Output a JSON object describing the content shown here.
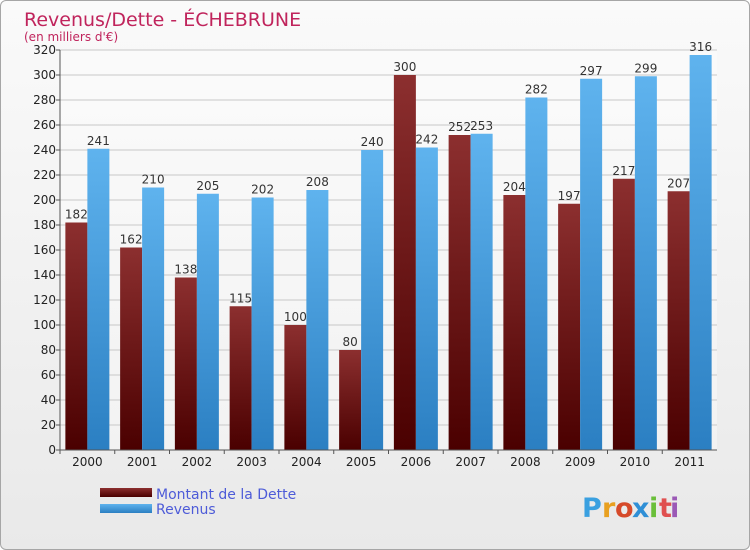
{
  "chart_data": {
    "type": "bar",
    "title": "Revenus/Dette - ÉCHEBRUNE",
    "subtitle": "(en milliers d'€)",
    "categories": [
      "2000",
      "2001",
      "2002",
      "2003",
      "2004",
      "2005",
      "2006",
      "2007",
      "2008",
      "2009",
      "2010",
      "2011"
    ],
    "series": [
      {
        "name": "Montant de la Dette",
        "color": "#7a1a1a",
        "values": [
          182,
          162,
          138,
          115,
          100,
          80,
          300,
          252,
          204,
          197,
          217,
          207
        ]
      },
      {
        "name": "Revenus",
        "color": "#4aa3e6",
        "values": [
          241,
          210,
          205,
          202,
          208,
          240,
          242,
          253,
          282,
          297,
          299,
          316
        ]
      }
    ],
    "ylim": [
      0,
      320
    ],
    "yticks": [
      0,
      20,
      40,
      60,
      80,
      100,
      120,
      140,
      160,
      180,
      200,
      220,
      240,
      260,
      280,
      300,
      320
    ],
    "grid": true,
    "legend_position": "bottom-left"
  },
  "logo": {
    "text": "Proxiti",
    "letters": [
      "P",
      "r",
      "o",
      "x",
      "i",
      "t",
      "i"
    ]
  }
}
